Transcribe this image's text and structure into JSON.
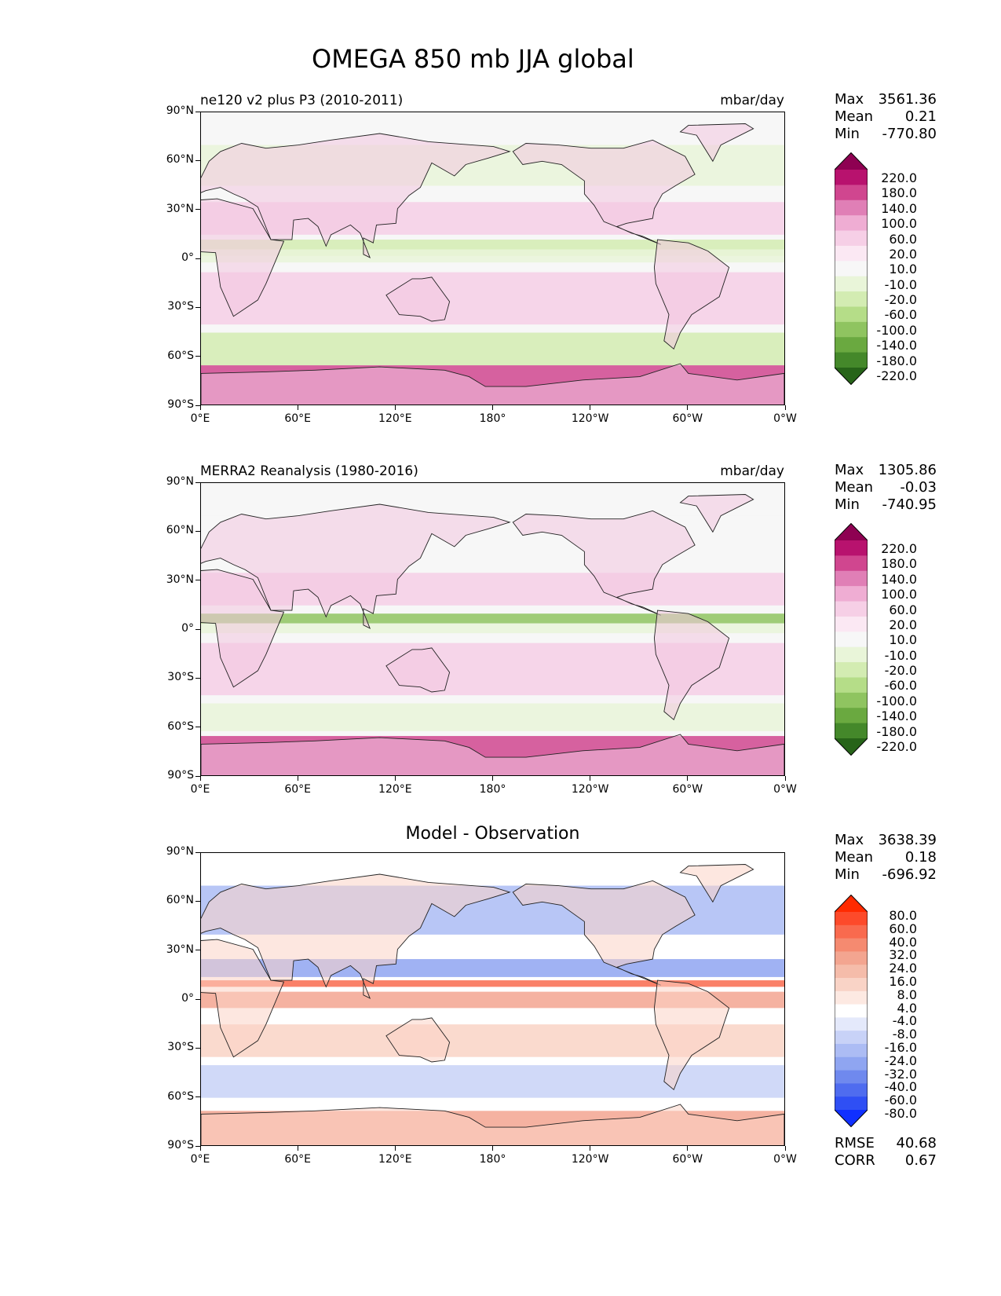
{
  "figure": {
    "title": "OMEGA 850 mb JJA global"
  },
  "axes": {
    "lat_ticks": [
      "90°N",
      "60°N",
      "30°N",
      "0°",
      "30°S",
      "60°S",
      "90°S"
    ],
    "lon_ticks": [
      "0°E",
      "60°E",
      "120°E",
      "180°",
      "120°W",
      "60°W",
      "0°W"
    ]
  },
  "panels": [
    {
      "title_left": "ne120 v2 plus P3 (2010-2011)",
      "title_right": "mbar/day",
      "title_center": "",
      "stats": {
        "max_label": "Max",
        "max": "3561.36",
        "mean_label": "Mean",
        "mean": "0.21",
        "min_label": "Min",
        "min": "-770.80"
      },
      "colorbar": {
        "labels": [
          "220.0",
          "180.0",
          "140.0",
          "100.0",
          "60.0",
          "20.0",
          "10.0",
          "-10.0",
          "-20.0",
          "-60.0",
          "-100.0",
          "-140.0",
          "-180.0",
          "-220.0"
        ],
        "colors": [
          "#8e0152",
          "#b8126e",
          "#d0468f",
          "#e07fb6",
          "#efadd3",
          "#f6cfe6",
          "#fbe8f3",
          "#f7f7f7",
          "#e9f5d9",
          "#d3ecb2",
          "#b5dd88",
          "#8fc460",
          "#6aa940",
          "#44882a",
          "#276419"
        ]
      }
    },
    {
      "title_left": "MERRA2 Reanalysis (1980-2016)",
      "title_right": "mbar/day",
      "title_center": "",
      "stats": {
        "max_label": "Max",
        "max": "1305.86",
        "mean_label": "Mean",
        "mean": "-0.03",
        "min_label": "Min",
        "min": "-740.95"
      },
      "colorbar": {
        "labels": [
          "220.0",
          "180.0",
          "140.0",
          "100.0",
          "60.0",
          "20.0",
          "10.0",
          "-10.0",
          "-20.0",
          "-60.0",
          "-100.0",
          "-140.0",
          "-180.0",
          "-220.0"
        ],
        "colors": [
          "#8e0152",
          "#b8126e",
          "#d0468f",
          "#e07fb6",
          "#efadd3",
          "#f6cfe6",
          "#fbe8f3",
          "#f7f7f7",
          "#e9f5d9",
          "#d3ecb2",
          "#b5dd88",
          "#8fc460",
          "#6aa940",
          "#44882a",
          "#276419"
        ]
      }
    },
    {
      "title_left": "",
      "title_right": "",
      "title_center": "Model - Observation",
      "stats": {
        "max_label": "Max",
        "max": "3638.39",
        "mean_label": "Mean",
        "mean": "0.18",
        "min_label": "Min",
        "min": "-696.92"
      },
      "colorbar": {
        "labels": [
          "80.0",
          "60.0",
          "40.0",
          "32.0",
          "24.0",
          "16.0",
          "8.0",
          "4.0",
          "-4.0",
          "-8.0",
          "-16.0",
          "-24.0",
          "-32.0",
          "-40.0",
          "-60.0",
          "-80.0"
        ],
        "colors": [
          "#ff2a00",
          "#fd4a2a",
          "#f96a4e",
          "#f58a70",
          "#f3a590",
          "#f5bcaa",
          "#f9d3c6",
          "#fde9e2",
          "#ffffff",
          "#e4e9fb",
          "#c8d2f7",
          "#acbcf4",
          "#8fa5f1",
          "#6f89ee",
          "#4f6cef",
          "#2f4ff4",
          "#1030ff"
        ]
      },
      "extra": {
        "rmse_label": "RMSE",
        "rmse": "40.68",
        "corr_label": "CORR",
        "corr": "0.67"
      }
    }
  ]
}
